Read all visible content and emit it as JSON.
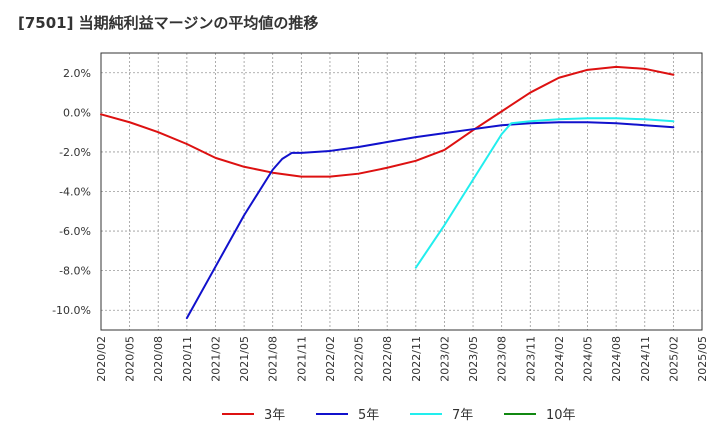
{
  "chart_data": {
    "type": "line",
    "title": "[7501]  当期純利益マージンの平均値の推移",
    "x_ticks": [
      "2020/02",
      "2020/05",
      "2020/08",
      "2020/11",
      "2021/02",
      "2021/05",
      "2021/08",
      "2021/11",
      "2022/02",
      "2022/05",
      "2022/08",
      "2022/11",
      "2023/02",
      "2023/05",
      "2023/08",
      "2023/11",
      "2024/02",
      "2024/05",
      "2024/08",
      "2024/11",
      "2025/02",
      "2025/05"
    ],
    "y_ticks": [
      2.0,
      0.0,
      -2.0,
      -4.0,
      -6.0,
      -8.0,
      -10.0
    ],
    "y_tick_labels": [
      "2.0%",
      "0.0%",
      "-2.0%",
      "-4.0%",
      "-6.0%",
      "-8.0%",
      "-10.0%"
    ],
    "ylim": [
      -11.0,
      3.0
    ],
    "grid": true,
    "legend_position": "bottom",
    "series": [
      {
        "name": "3年",
        "color": "#dd1111",
        "x": [
          "2020/02",
          "2020/05",
          "2020/08",
          "2020/11",
          "2021/02",
          "2021/05",
          "2021/08",
          "2021/11",
          "2022/02",
          "2022/05",
          "2022/08",
          "2022/11",
          "2023/02",
          "2023/05",
          "2023/08",
          "2023/11",
          "2024/02",
          "2024/05",
          "2024/08",
          "2024/11",
          "2025/02"
        ],
        "values": [
          -0.1,
          -0.5,
          -1.0,
          -1.6,
          -2.3,
          -2.75,
          -3.05,
          -3.25,
          -3.25,
          -3.1,
          -2.8,
          -2.45,
          -1.9,
          -0.9,
          0.05,
          1.0,
          1.75,
          2.15,
          2.3,
          2.2,
          1.9
        ]
      },
      {
        "name": "5年",
        "color": "#1111cc",
        "x": [
          "2020/11",
          "2021/02",
          "2021/05",
          "2021/08",
          "2021/09",
          "2021/10",
          "2021/11",
          "2022/02",
          "2022/05",
          "2022/08",
          "2022/11",
          "2023/02",
          "2023/05",
          "2023/08",
          "2023/11",
          "2024/02",
          "2024/05",
          "2024/08",
          "2024/11",
          "2025/02"
        ],
        "values": [
          -10.4,
          -7.8,
          -5.2,
          -2.9,
          -2.35,
          -2.05,
          -2.05,
          -1.95,
          -1.75,
          -1.5,
          -1.25,
          -1.05,
          -0.85,
          -0.65,
          -0.55,
          -0.5,
          -0.5,
          -0.55,
          -0.65,
          -0.75
        ]
      },
      {
        "name": "7年",
        "color": "#22eeee",
        "x": [
          "2022/11",
          "2023/02",
          "2023/05",
          "2023/08",
          "2023/09",
          "2023/11",
          "2024/02",
          "2024/05",
          "2024/08",
          "2024/11",
          "2025/02"
        ],
        "values": [
          -7.85,
          -5.7,
          -3.4,
          -1.1,
          -0.55,
          -0.45,
          -0.35,
          -0.3,
          -0.3,
          -0.35,
          -0.45
        ]
      },
      {
        "name": "10年",
        "color": "#118811",
        "x": [],
        "values": []
      }
    ]
  }
}
